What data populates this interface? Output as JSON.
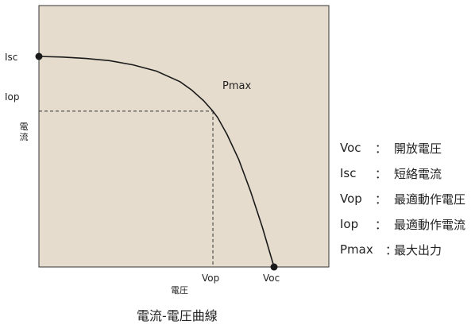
{
  "chart_data": {
    "type": "line",
    "title": "",
    "xlabel": "電圧",
    "ylabel": "電流",
    "x_ticks": [
      "Vop",
      "Voc"
    ],
    "y_ticks": [
      "Isc",
      "Iop"
    ],
    "xlim": [
      0,
      1
    ],
    "ylim": [
      0,
      1
    ],
    "grid": false,
    "series": [
      {
        "x": [
          0,
          0.1,
          0.2,
          0.3,
          0.4,
          0.5,
          0.6,
          0.65,
          0.7,
          0.74,
          0.76,
          0.8,
          0.85,
          0.9,
          0.95,
          1.0
        ],
        "y": [
          1.0,
          0.997,
          0.99,
          0.98,
          0.96,
          0.93,
          0.88,
          0.84,
          0.79,
          0.74,
          0.71,
          0.63,
          0.51,
          0.36,
          0.19,
          0.0
        ]
      }
    ],
    "points": [
      {
        "name": "Isc",
        "x": 0,
        "y": 1.0
      },
      {
        "name": "Voc",
        "x": 1.0,
        "y": 0.0
      }
    ],
    "annotations": [
      {
        "text": "Pmax",
        "x": 0.74,
        "y": 0.74
      }
    ],
    "mpp": {
      "x": 0.74,
      "y": 0.74
    }
  },
  "labels": {
    "isc": "Isc",
    "iop": "Iop",
    "pmax": "Pmax",
    "vop": "Vop",
    "voc": "Voc",
    "y_axis": [
      "電",
      "流"
    ],
    "x_axis": "電圧",
    "caption": "電流-電圧曲線"
  },
  "legend": [
    {
      "key": "Voc",
      "sep": "：",
      "desc": "開放電圧"
    },
    {
      "key": "Isc",
      "sep": "：",
      "desc": "短絡電流"
    },
    {
      "key": "Vop",
      "sep": "：",
      "desc": "最適動作電圧"
    },
    {
      "key": "Iop",
      "sep": "：",
      "desc": "最適動作電流"
    },
    {
      "key": "Pmax",
      "sep": "：",
      "desc": "最大出力"
    }
  ],
  "colors": {
    "plot_background": "#e5dccd",
    "curve": "#1a1a1a",
    "guide": "#333333"
  }
}
